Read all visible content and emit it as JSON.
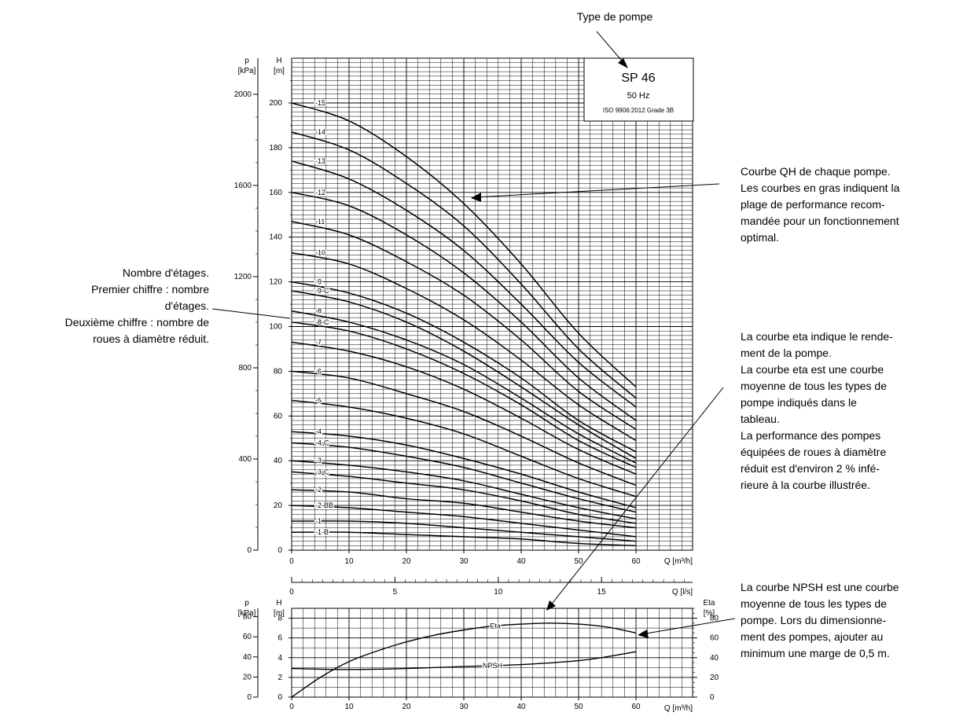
{
  "annotations": {
    "pump_type": "Type de pompe",
    "stages": [
      "Nombre d'étages.",
      "Premier chiffre : nombre",
      "d'étages.",
      "Deuxième chiffre : nombre de",
      "roues à diamètre réduit."
    ],
    "qh": [
      "Courbe QH de chaque pompe.",
      "Les courbes en gras indiquent la",
      "plage de performance recom-",
      "mandée pour un fonctionnement",
      "optimal."
    ],
    "eta": [
      "La courbe eta indique le rende-",
      "ment de la pompe.",
      "La courbe eta est une courbe",
      "moyenne de tous les types de",
      "pompe indiqués dans le",
      "tableau.",
      "La performance des pompes",
      "équipées de roues à diamètre",
      "réduit est d'environ 2 % infé-",
      "rieure à la courbe illustrée."
    ],
    "npsh": [
      "La courbe NPSH est une courbe",
      "moyenne de tous les types de",
      "pompe. Lors du dimensionne-",
      "ment des pompes, ajouter au",
      "minimum une marge de 0,5 m."
    ]
  },
  "infobox": {
    "model": "SP 46",
    "freq": "50 Hz",
    "standard": "ISO 9906:2012 Grade 3B"
  },
  "chart_data": [
    {
      "type": "line",
      "title": "",
      "xlabel": "Q [m³/h]",
      "x2label": "Q [l/s]",
      "ylabel": "H [m]",
      "y2label": "p [kPa]",
      "xlim": [
        0,
        60
      ],
      "ylim": [
        0,
        210
      ],
      "x_ticks": [
        0,
        10,
        20,
        30,
        40,
        50,
        60
      ],
      "x2_ticks": [
        0,
        5,
        10,
        15
      ],
      "y_ticks": [
        0,
        20,
        40,
        60,
        80,
        100,
        120,
        140,
        160,
        180,
        200
      ],
      "y2_ticks": [
        0,
        400,
        800,
        1200,
        1600,
        2000
      ],
      "axis_labels": {
        "p": "p",
        "kpa": "[kPa]",
        "h": "H",
        "m": "[m]"
      },
      "grid": true,
      "x": [
        0,
        10,
        20,
        30,
        40,
        50,
        60
      ],
      "series": [
        {
          "name": "-15",
          "values": [
            200,
            192,
            176,
            155,
            128,
            97,
            73
          ]
        },
        {
          "name": "-14",
          "values": [
            187,
            179,
            164,
            145,
            119,
            90,
            68
          ]
        },
        {
          "name": "-13",
          "values": [
            174,
            166,
            152,
            134,
            110,
            84,
            64
          ]
        },
        {
          "name": "-12",
          "values": [
            160,
            154,
            141,
            124,
            102,
            77,
            58
          ]
        },
        {
          "name": "-11",
          "values": [
            147,
            141,
            129,
            114,
            94,
            71,
            54
          ]
        },
        {
          "name": "-10",
          "values": [
            133,
            128,
            117,
            103,
            85,
            65,
            49
          ]
        },
        {
          "name": "-9",
          "values": [
            120,
            115,
            106,
            93,
            77,
            58,
            44
          ]
        },
        {
          "name": "-9-C",
          "values": [
            116,
            111,
            102,
            89,
            73,
            56,
            41
          ]
        },
        {
          "name": "-8",
          "values": [
            107,
            102,
            94,
            83,
            68,
            52,
            39
          ]
        },
        {
          "name": "-8-C",
          "values": [
            102,
            98,
            90,
            79,
            65,
            49,
            37
          ]
        },
        {
          "name": "-7",
          "values": [
            93,
            89,
            82,
            72,
            59,
            45,
            34
          ]
        },
        {
          "name": "-6",
          "values": [
            80,
            77,
            70,
            62,
            51,
            39,
            29
          ]
        },
        {
          "name": "-5",
          "values": [
            67,
            64,
            59,
            52,
            42,
            32,
            24
          ]
        },
        {
          "name": "-4",
          "values": [
            53,
            51,
            47,
            41,
            34,
            26,
            19
          ]
        },
        {
          "name": "-4-C",
          "values": [
            48,
            46,
            42,
            37,
            30,
            23,
            17
          ]
        },
        {
          "name": "-3",
          "values": [
            40,
            38,
            35,
            31,
            25,
            19,
            14
          ]
        },
        {
          "name": "-3-C",
          "values": [
            35,
            33,
            30,
            27,
            22,
            16,
            12
          ]
        },
        {
          "name": "-2",
          "values": [
            27,
            26,
            23,
            21,
            17,
            13,
            10
          ]
        },
        {
          "name": "-2-BB",
          "values": [
            20,
            19,
            17,
            15,
            12,
            9,
            6
          ]
        },
        {
          "name": "-1",
          "values": [
            13,
            13,
            12,
            10,
            8,
            6,
            4
          ]
        },
        {
          "name": "-1-B",
          "values": [
            8,
            8,
            7,
            6,
            5,
            3,
            2
          ]
        }
      ]
    },
    {
      "type": "line",
      "title": "",
      "xlabel": "Q [m³/h]",
      "ylabel": "H [m]",
      "y2label": "p [kPa]",
      "y3label": "Eta [%]",
      "xlim": [
        0,
        60
      ],
      "ylim": [
        0,
        9
      ],
      "x_ticks": [
        0,
        10,
        20,
        30,
        40,
        50,
        60
      ],
      "y_ticks": [
        0,
        2,
        4,
        6,
        8
      ],
      "y2_ticks": [
        0,
        20,
        40,
        60,
        80
      ],
      "y3_ticks": [
        0,
        20,
        40,
        60,
        80
      ],
      "axis_labels": {
        "p": "p",
        "kpa": "[kPa]",
        "h": "H",
        "m": "[m]",
        "eta": "Eta",
        "pct": "[%]"
      },
      "grid": true,
      "series": [
        {
          "name": "Eta",
          "axis": "eta_percent",
          "x": [
            0,
            5,
            10,
            15,
            20,
            25,
            30,
            35,
            40,
            45,
            50,
            55,
            60
          ],
          "values": [
            0,
            20,
            36,
            47,
            56,
            63,
            68,
            72,
            74,
            75,
            74,
            71,
            65
          ]
        },
        {
          "name": "NPSH",
          "axis": "H_m",
          "x": [
            0,
            10,
            20,
            30,
            40,
            50,
            55,
            60
          ],
          "values": [
            2.9,
            2.8,
            2.9,
            3.1,
            3.3,
            3.7,
            4.1,
            4.6
          ]
        }
      ]
    }
  ]
}
